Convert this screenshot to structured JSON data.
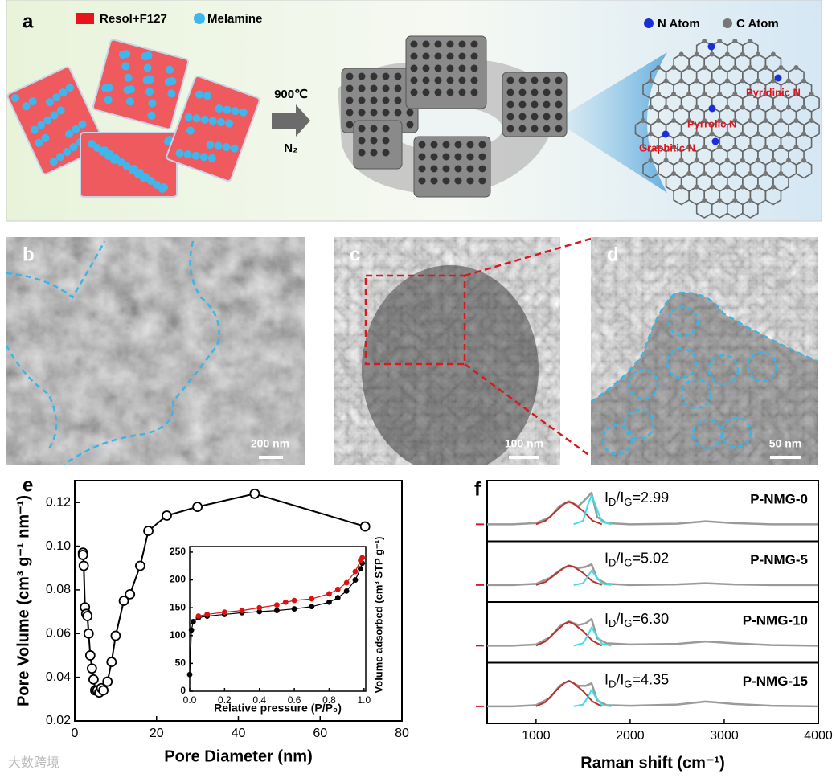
{
  "panel_a": {
    "label": "a",
    "legend": [
      "Resol+F127",
      "Melamine"
    ],
    "legend_atoms": [
      "N Atom",
      "C Atom"
    ],
    "arrow_top": "900℃",
    "arrow_bottom": "N₂",
    "sites": [
      "Pyridinic N",
      "Pyrrolic N",
      "Graphitic N"
    ]
  },
  "panel_b": {
    "label": "b",
    "scale_bar": "200 nm"
  },
  "panel_c": {
    "label": "c",
    "scale_bar": "100 nm"
  },
  "panel_d": {
    "label": "d",
    "scale_bar": "50 nm"
  },
  "watermark": "大数跨境",
  "chart_data": [
    {
      "type": "line",
      "panel_label": "e",
      "xlabel": "Pore Diameter (nm)",
      "ylabel": "Pore Volume (cm³ g⁻¹ nm⁻¹)",
      "xlim": [
        0,
        80
      ],
      "xticks": [
        0,
        20,
        40,
        60,
        80
      ],
      "ylim": [
        0.02,
        0.13
      ],
      "yticks": [
        0.02,
        0.04,
        0.06,
        0.08,
        {
          "value": 0.1,
          "label": "0.10"
        },
        0.12
      ],
      "marker": "open-circle",
      "series": [
        {
          "color": "#000000",
          "x": [
            2,
            2,
            2.2,
            2.5,
            2.8,
            3.1,
            3.4,
            3.8,
            4.2,
            4.6,
            5,
            5.5,
            6,
            6.5,
            7,
            8,
            9,
            10,
            12,
            13.5,
            16,
            18,
            22.5,
            30,
            44,
            71
          ],
          "values": [
            0.097,
            0.096,
            0.091,
            0.072,
            0.069,
            0.068,
            0.06,
            0.05,
            0.044,
            0.039,
            0.034,
            0.034,
            0.033,
            0.035,
            0.034,
            0.038,
            0.047,
            0.059,
            0.075,
            0.078,
            0.091,
            0.107,
            0.114,
            0.118,
            0.124,
            0.109
          ]
        }
      ]
    },
    {
      "type": "line",
      "xlabel": "Relative pressure (P/P₀)",
      "ylabel": "Volume adsorbed (cm³ STP g⁻¹)",
      "xlim": [
        0,
        1.01
      ],
      "xticks": [
        {
          "value": 0,
          "label": "0.0"
        },
        0.2,
        0.4,
        0.6,
        0.8,
        {
          "value": 1,
          "label": "1.0"
        }
      ],
      "ylim": [
        0,
        260
      ],
      "yticks": [
        0,
        50,
        100,
        150,
        200,
        250
      ],
      "marker": "dot",
      "series": [
        {
          "color": "#000000",
          "x": [
            0,
            0.01,
            0.02,
            0.05,
            0.1,
            0.2,
            0.3,
            0.4,
            0.5,
            0.6,
            0.7,
            0.8,
            0.85,
            0.9,
            0.95,
            0.98,
            0.99
          ],
          "values": [
            30,
            110,
            125,
            132,
            135,
            138,
            141,
            143,
            145,
            148,
            152,
            160,
            168,
            180,
            200,
            220,
            230
          ]
        },
        {
          "color": "#e01010",
          "x": [
            0.05,
            0.1,
            0.2,
            0.3,
            0.4,
            0.5,
            0.55,
            0.6,
            0.7,
            0.8,
            0.85,
            0.9,
            0.95,
            0.98,
            0.99
          ],
          "values": [
            135,
            138,
            142,
            145,
            150,
            155,
            160,
            163,
            166,
            175,
            183,
            195,
            215,
            235,
            240
          ]
        }
      ]
    },
    {
      "type": "spectra",
      "panel_label": "f",
      "xlabel": "Raman shift (cm⁻¹)",
      "xlim": [
        480,
        4000
      ],
      "xticks": [
        1000,
        2000,
        3000,
        4000
      ],
      "panels": [
        {
          "name": "P-NMG-0",
          "label_parts": [
            "I",
            "D",
            "/I",
            "G",
            "=2.99"
          ],
          "ylim": [
            0,
            1
          ],
          "series": [
            {
              "color": "#9a9a9a",
              "x": [
                480,
                750,
                1000,
                1150,
                1250,
                1350,
                1450,
                1530,
                1590,
                1650,
                1750,
                2000,
                2500,
                2800,
                3100,
                3500,
                4000
              ],
              "values": [
                0.28,
                0.28,
                0.3,
                0.4,
                0.58,
                0.66,
                0.58,
                0.7,
                0.8,
                0.4,
                0.3,
                0.28,
                0.29,
                0.33,
                0.3,
                0.28,
                0.28
              ]
            },
            {
              "color": "#c0302a",
              "x": [
                1000,
                1100,
                1200,
                1300,
                1350,
                1400,
                1500,
                1600,
                1700
              ],
              "values": [
                0.28,
                0.34,
                0.48,
                0.62,
                0.65,
                0.62,
                0.5,
                0.34,
                0.28
              ]
            },
            {
              "color": "#3fdde6",
              "x": [
                1400,
                1500,
                1550,
                1590,
                1630,
                1700,
                1800
              ],
              "values": [
                0.28,
                0.34,
                0.6,
                0.76,
                0.6,
                0.32,
                0.28
              ]
            }
          ]
        },
        {
          "name": "P-NMG-5",
          "label_parts": [
            "I",
            "D",
            "/I",
            "G",
            "=5.02"
          ],
          "ylim": [
            0,
            1
          ],
          "series": [
            {
              "color": "#9a9a9a",
              "x": [
                480,
                750,
                1000,
                1150,
                1250,
                1350,
                1450,
                1530,
                1590,
                1650,
                1750,
                2000,
                2500,
                2800,
                3100,
                3500,
                4000
              ],
              "values": [
                0.28,
                0.28,
                0.3,
                0.4,
                0.52,
                0.6,
                0.56,
                0.58,
                0.62,
                0.38,
                0.3,
                0.28,
                0.29,
                0.31,
                0.29,
                0.28,
                0.28
              ]
            },
            {
              "color": "#c0302a",
              "x": [
                1000,
                1100,
                1200,
                1300,
                1350,
                1400,
                1500,
                1600,
                1700
              ],
              "values": [
                0.28,
                0.33,
                0.45,
                0.57,
                0.6,
                0.58,
                0.48,
                0.34,
                0.28
              ]
            },
            {
              "color": "#3fdde6",
              "x": [
                1400,
                1500,
                1550,
                1590,
                1630,
                1700,
                1800
              ],
              "values": [
                0.28,
                0.31,
                0.42,
                0.52,
                0.44,
                0.3,
                0.28
              ]
            }
          ]
        },
        {
          "name": "P-NMG-10",
          "label_parts": [
            "I",
            "D",
            "/I",
            "G",
            "=6.30"
          ],
          "ylim": [
            0,
            1
          ],
          "series": [
            {
              "color": "#9a9a9a",
              "x": [
                480,
                750,
                1000,
                1150,
                1250,
                1350,
                1450,
                1530,
                1590,
                1650,
                1750,
                2000,
                2500,
                2800,
                3100,
                3500,
                4000
              ],
              "values": [
                0.28,
                0.28,
                0.3,
                0.42,
                0.6,
                0.68,
                0.62,
                0.65,
                0.72,
                0.4,
                0.32,
                0.3,
                0.31,
                0.35,
                0.32,
                0.29,
                0.28
              ]
            },
            {
              "color": "#c0302a",
              "x": [
                1000,
                1100,
                1200,
                1300,
                1350,
                1400,
                1500,
                1600,
                1700
              ],
              "values": [
                0.28,
                0.35,
                0.5,
                0.64,
                0.67,
                0.64,
                0.52,
                0.36,
                0.28
              ]
            },
            {
              "color": "#3fdde6",
              "x": [
                1400,
                1500,
                1550,
                1590,
                1630,
                1700,
                1800
              ],
              "values": [
                0.28,
                0.32,
                0.45,
                0.58,
                0.48,
                0.31,
                0.28
              ]
            }
          ]
        },
        {
          "name": "P-NMG-15",
          "label_parts": [
            "I",
            "D",
            "/I",
            "G",
            "=4.35"
          ],
          "ylim": [
            0,
            1
          ],
          "series": [
            {
              "color": "#9a9a9a",
              "x": [
                480,
                750,
                1000,
                1150,
                1250,
                1350,
                1450,
                1530,
                1590,
                1650,
                1750,
                2000,
                2500,
                2800,
                3100,
                3500,
                4000
              ],
              "values": [
                0.28,
                0.28,
                0.3,
                0.42,
                0.62,
                0.7,
                0.62,
                0.62,
                0.66,
                0.38,
                0.3,
                0.29,
                0.31,
                0.36,
                0.32,
                0.29,
                0.28
              ]
            },
            {
              "color": "#c0302a",
              "x": [
                1000,
                1100,
                1200,
                1300,
                1350,
                1400,
                1500,
                1600,
                1700
              ],
              "values": [
                0.28,
                0.35,
                0.52,
                0.67,
                0.7,
                0.66,
                0.53,
                0.36,
                0.28
              ]
            },
            {
              "color": "#3fdde6",
              "x": [
                1400,
                1500,
                1550,
                1590,
                1630,
                1700,
                1800
              ],
              "values": [
                0.28,
                0.31,
                0.43,
                0.55,
                0.44,
                0.3,
                0.28
              ]
            }
          ]
        }
      ]
    }
  ]
}
